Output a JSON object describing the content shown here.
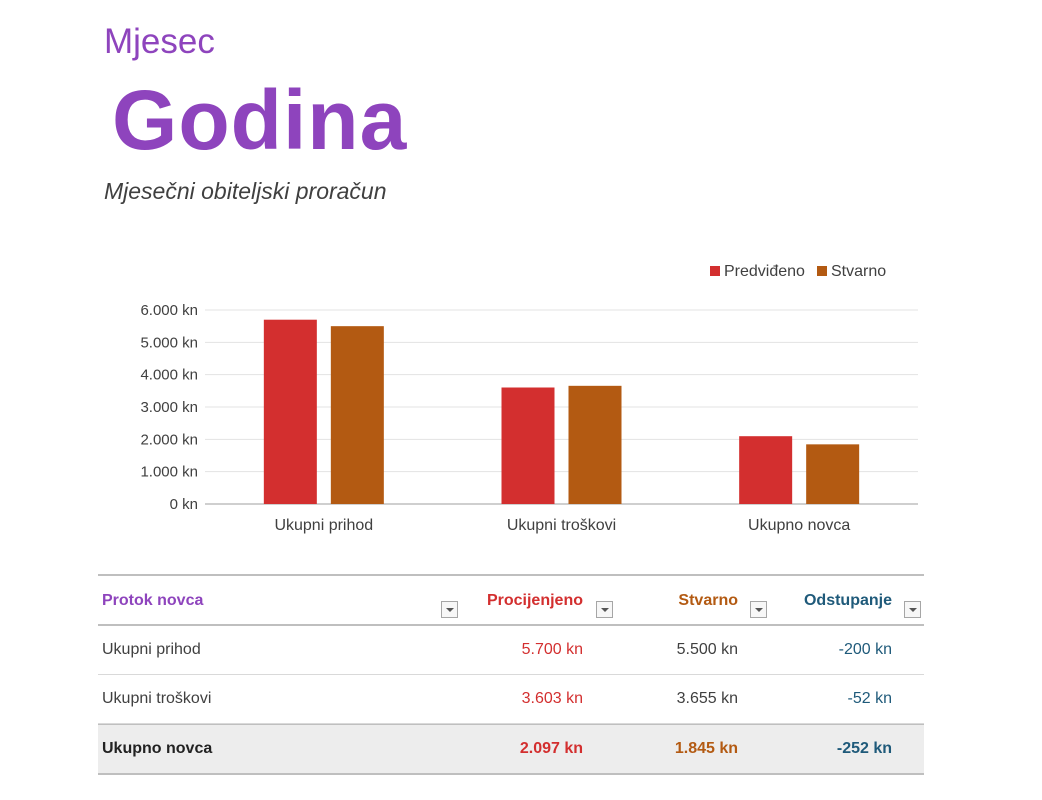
{
  "header": {
    "month": "Mjesec",
    "year": "Godina",
    "subtitle": "Mjesečni obiteljski proračun"
  },
  "chart_data": {
    "type": "bar",
    "categories": [
      "Ukupni prihod",
      "Ukupni troškovi",
      "Ukupno novca"
    ],
    "series": [
      {
        "name": "Predviđeno",
        "color": "#d32f2f",
        "values": [
          5700,
          3603,
          2097
        ]
      },
      {
        "name": "Stvarno",
        "color": "#b35a12",
        "values": [
          5500,
          3655,
          1845
        ]
      }
    ],
    "ylim": [
      0,
      6000
    ],
    "yticks": [
      0,
      1000,
      2000,
      3000,
      4000,
      5000,
      6000
    ],
    "ytick_labels": [
      "0 kn",
      "1.000 kn",
      "2.000 kn",
      "3.000 kn",
      "4.000 kn",
      "5.000 kn",
      "6.000 kn"
    ],
    "grid": true,
    "legend_position": "top-right"
  },
  "table": {
    "headers": {
      "name": "Protok novca",
      "estimated": "Procijenjeno",
      "actual": "Stvarno",
      "variance": "Odstupanje"
    },
    "rows": [
      {
        "name": "Ukupni prihod",
        "estimated": "5.700 kn",
        "actual": "5.500 kn",
        "variance": "-200 kn"
      },
      {
        "name": "Ukupni troškovi",
        "estimated": "3.603 kn",
        "actual": "3.655 kn",
        "variance": "-52 kn"
      }
    ],
    "total": {
      "name": "Ukupno novca",
      "estimated": "2.097 kn",
      "actual": "1.845 kn",
      "variance": "-252 kn"
    },
    "filter_icon": "dropdown-arrow-icon"
  }
}
